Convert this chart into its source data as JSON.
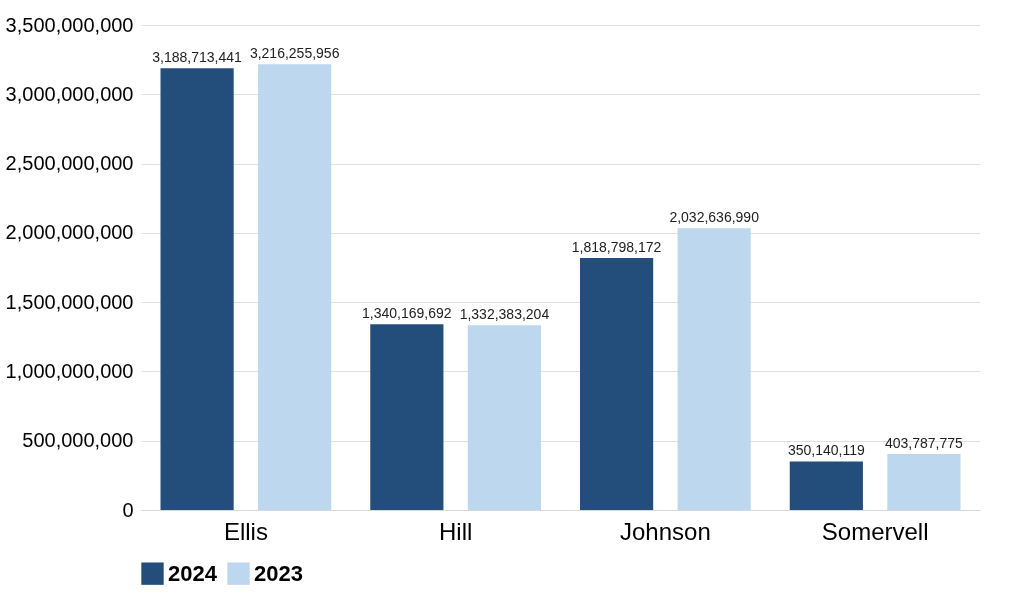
{
  "chart_data": {
    "type": "bar",
    "categories": [
      "Ellis",
      "Hill",
      "Johnson",
      "Somervell"
    ],
    "series": [
      {
        "name": "2024",
        "color": "#234e7b",
        "values": [
          3188713441,
          1340169692,
          1818798172,
          350140119
        ],
        "value_labels": [
          "3,188,713,441",
          "1,340,169,692",
          "1,818,798,172",
          "350,140,119"
        ]
      },
      {
        "name": "2023",
        "color": "#bdd7ee",
        "values": [
          3216255956,
          1332383204,
          2032636990,
          403787775
        ],
        "value_labels": [
          "3,216,255,956",
          "1,332,383,204",
          "2,032,636,990",
          "403,787,775"
        ]
      }
    ],
    "ylim": [
      0,
      3500000000
    ],
    "yticks": [
      0,
      {
        "value": 500000000,
        "label": "500,000,000"
      },
      {
        "value": 1000000000,
        "label": "1,000,000,000"
      },
      {
        "value": 1500000000,
        "label": "1,500,000,000"
      },
      {
        "value": 2000000000,
        "label": "2,000,000,000"
      },
      {
        "value": 2500000000,
        "label": "2,500,000,000"
      },
      {
        "value": 3000000000,
        "label": "3,000,000,000"
      },
      {
        "value": 3500000000,
        "label": "3,500,000,000"
      }
    ],
    "grid": "y",
    "legend": "bottom"
  }
}
